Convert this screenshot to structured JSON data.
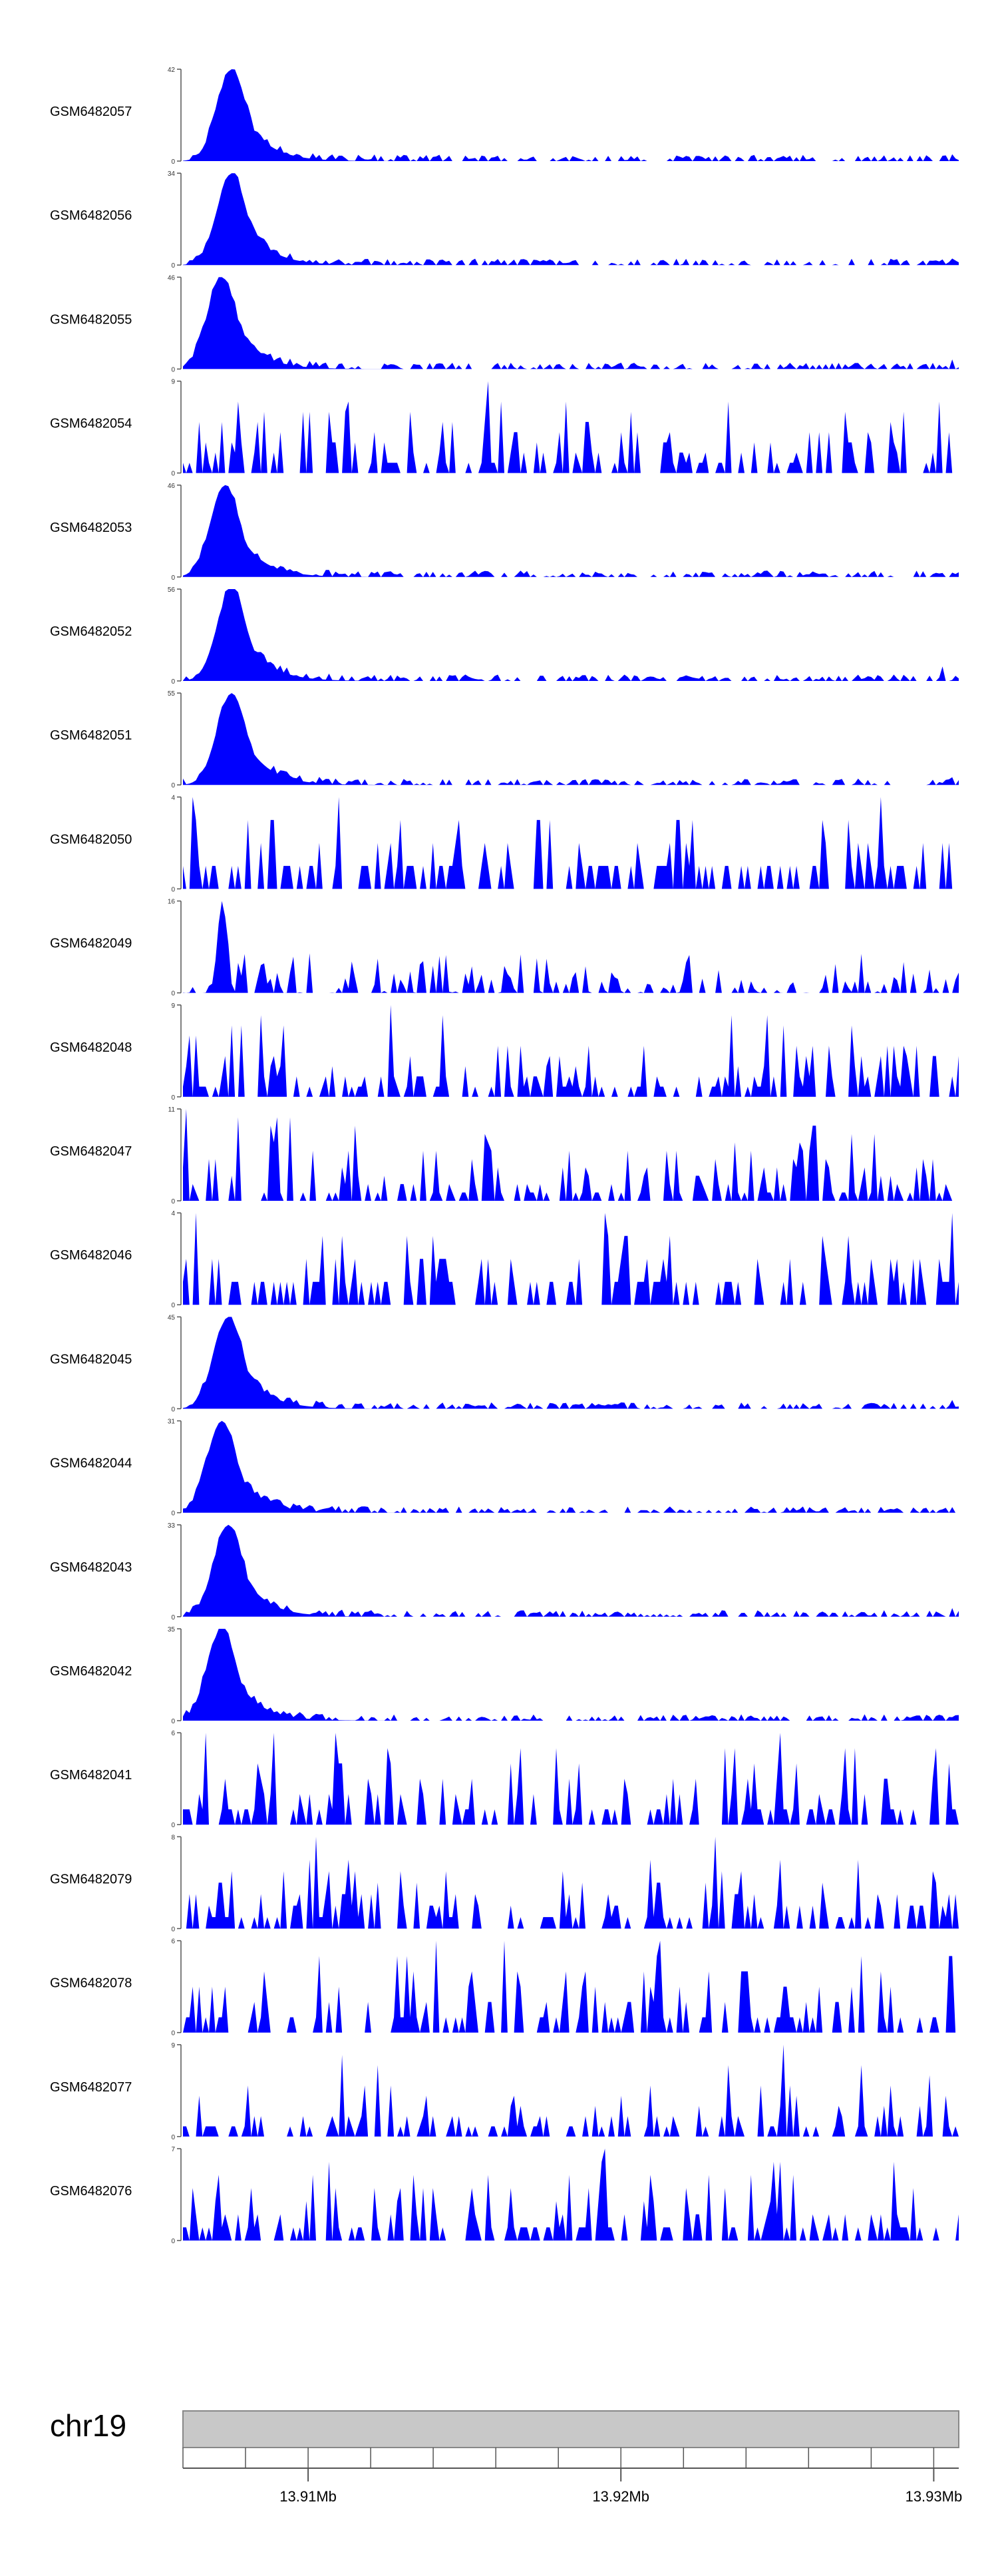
{
  "chart_data": {
    "type": "area",
    "colors": {
      "track_fill": "#0000ff",
      "axis": "#555555",
      "ideogram_fill": "#c8c8c8",
      "ideogram_stroke": "#888888",
      "text": "#000000"
    },
    "tracks": [
      {
        "name": "GSM6482057",
        "ymax": 42,
        "ymin_label": "0",
        "ymax_label": "42"
      },
      {
        "name": "GSM6482056",
        "ymax": 34,
        "ymin_label": "0",
        "ymax_label": "34"
      },
      {
        "name": "GSM6482055",
        "ymax": 46,
        "ymin_label": "0",
        "ymax_label": "46"
      },
      {
        "name": "GSM6482054",
        "ymax": 9,
        "ymin_label": "0",
        "ymax_label": "9"
      },
      {
        "name": "GSM6482053",
        "ymax": 46,
        "ymin_label": "0",
        "ymax_label": "46"
      },
      {
        "name": "GSM6482052",
        "ymax": 56,
        "ymin_label": "0",
        "ymax_label": "56"
      },
      {
        "name": "GSM6482051",
        "ymax": 55,
        "ymin_label": "0",
        "ymax_label": "55"
      },
      {
        "name": "GSM6482050",
        "ymax": 4,
        "ymin_label": "0",
        "ymax_label": "4"
      },
      {
        "name": "GSM6482049",
        "ymax": 16,
        "ymin_label": "0",
        "ymax_label": "16"
      },
      {
        "name": "GSM6482048",
        "ymax": 9,
        "ymin_label": "0",
        "ymax_label": "9"
      },
      {
        "name": "GSM6482047",
        "ymax": 11,
        "ymin_label": "0",
        "ymax_label": "11"
      },
      {
        "name": "GSM6482046",
        "ymax": 4,
        "ymin_label": "0",
        "ymax_label": "4"
      },
      {
        "name": "GSM6482045",
        "ymax": 45,
        "ymin_label": "0",
        "ymax_label": "45"
      },
      {
        "name": "GSM6482044",
        "ymax": 31,
        "ymin_label": "0",
        "ymax_label": "31"
      },
      {
        "name": "GSM6482043",
        "ymax": 33,
        "ymin_label": "0",
        "ymax_label": "33"
      },
      {
        "name": "GSM6482042",
        "ymax": 35,
        "ymin_label": "0",
        "ymax_label": "35"
      },
      {
        "name": "GSM6482041",
        "ymax": 6,
        "ymin_label": "0",
        "ymax_label": "6"
      },
      {
        "name": "GSM6482079",
        "ymax": 8,
        "ymin_label": "0",
        "ymax_label": "8"
      },
      {
        "name": "GSM6482078",
        "ymax": 6,
        "ymin_label": "0",
        "ymax_label": "6"
      },
      {
        "name": "GSM6482077",
        "ymax": 9,
        "ymin_label": "0",
        "ymax_label": "9"
      },
      {
        "name": "GSM6482076",
        "ymax": 7,
        "ymin_label": "0",
        "ymax_label": "7"
      }
    ],
    "chromosome": "chr19",
    "x_ticks": [
      {
        "label": "13.91Mb",
        "mb": 13.91
      },
      {
        "label": "13.92Mb",
        "mb": 13.92
      },
      {
        "label": "13.93Mb",
        "mb": 13.93
      }
    ],
    "xlim_mb": [
      13.906,
      13.9308
    ]
  }
}
